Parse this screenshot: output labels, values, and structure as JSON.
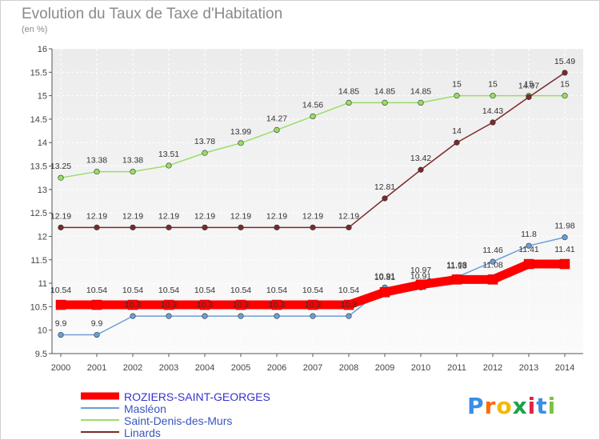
{
  "chart_data": {
    "type": "line",
    "title": "Evolution du Taux de Taxe d'Habitation",
    "subtitle": "(en %)",
    "x": [
      "2000",
      "2001",
      "2002",
      "2003",
      "2004",
      "2005",
      "2006",
      "2007",
      "2008",
      "2009",
      "2010",
      "2011",
      "2012",
      "2013",
      "2014"
    ],
    "ylim": [
      9.5,
      16
    ],
    "yticks": [
      9.5,
      10,
      10.5,
      11,
      11.5,
      12,
      12.5,
      13,
      13.5,
      14,
      14.5,
      15,
      15.5,
      16
    ],
    "ytick_labels": [
      "9.5",
      "10",
      "10.5",
      "11",
      "11.5",
      "12",
      "12.5",
      "13",
      "13.5",
      "14",
      "14.5",
      "15",
      "15.5",
      "16"
    ],
    "grid": true,
    "legend_position": "bottom-left",
    "series": [
      {
        "name": "ROZIERS-SAINT-GEORGES",
        "color": "#ff0000",
        "values": [
          10.54,
          10.54,
          10.54,
          10.54,
          10.54,
          10.54,
          10.54,
          10.54,
          10.54,
          10.81,
          10.97,
          11.08,
          11.08,
          11.41,
          11.41
        ],
        "labels": [
          "10.54",
          "10.54",
          "10.54",
          "10.54",
          "10.54",
          "10.54",
          "10.54",
          "10.54",
          "10.54",
          "10.81",
          "10.97",
          "11.08",
          "11.08",
          "11.41",
          "11.41"
        ]
      },
      {
        "name": "Masléon",
        "color": "#6a9fd4",
        "values": [
          9.9,
          9.9,
          10.3,
          10.3,
          10.3,
          10.3,
          10.3,
          10.3,
          10.3,
          10.91,
          10.91,
          11.13,
          11.46,
          11.8,
          11.98
        ],
        "labels": [
          "9.9",
          "9.9",
          "10.3",
          "10.3",
          "10.3",
          "10.3",
          "10.3",
          "10.3",
          "10.3",
          "10.91",
          "10.91",
          "11.13",
          "11.46",
          "11.8",
          "11.98"
        ]
      },
      {
        "name": "Saint-Denis-des-Murs",
        "color": "#99dd66",
        "values": [
          13.25,
          13.38,
          13.38,
          13.51,
          13.78,
          13.99,
          14.27,
          14.56,
          14.85,
          14.85,
          14.85,
          15,
          15,
          15,
          15
        ],
        "labels": [
          "13.25",
          "13.38",
          "13.38",
          "13.51",
          "13.78",
          "13.99",
          "14.27",
          "14.56",
          "14.85",
          "14.85",
          "14.85",
          "15",
          "15",
          "15",
          "15"
        ]
      },
      {
        "name": "Linards",
        "color": "#7a2a2a",
        "values": [
          12.19,
          12.19,
          12.19,
          12.19,
          12.19,
          12.19,
          12.19,
          12.19,
          12.19,
          12.81,
          13.42,
          14,
          14.43,
          14.97,
          15.49
        ],
        "labels": [
          "12.19",
          "12.19",
          "12.19",
          "12.19",
          "12.19",
          "12.19",
          "12.19",
          "12.19",
          "12.19",
          "12.81",
          "13.42",
          "14",
          "14.43",
          "14.97",
          "15.49"
        ]
      }
    ]
  },
  "logo": {
    "text": "Proxiti",
    "letters": [
      "P",
      "r",
      "o",
      "x",
      "i",
      "t",
      "i"
    ],
    "colors": [
      "#3a8ee6",
      "#ff6a00",
      "#f6b800",
      "#1aa34a",
      "#e0234a",
      "#3a8ee6",
      "#7dc142"
    ]
  }
}
